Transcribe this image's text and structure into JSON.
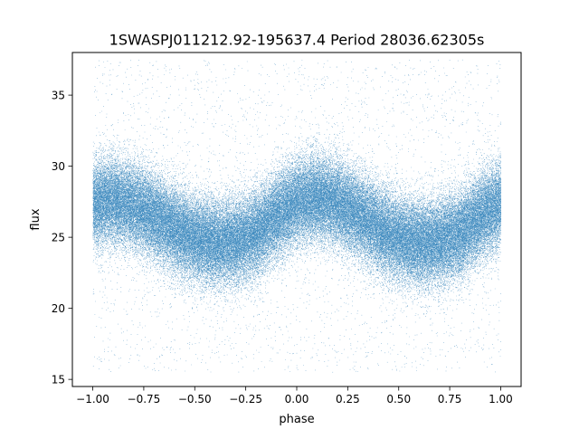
{
  "chart_data": {
    "type": "scatter",
    "title": "1SWASPJ011212.92-195637.4 Period 28036.62305s",
    "xlabel": "phase",
    "ylabel": "flux",
    "xlim": [
      -1.1,
      1.1
    ],
    "ylim": [
      14.5,
      38.0
    ],
    "x_ticks": [
      -1.0,
      -0.75,
      -0.5,
      -0.25,
      0.0,
      0.25,
      0.5,
      0.75,
      1.0
    ],
    "x_tick_labels": [
      "−1.00",
      "−0.75",
      "−0.50",
      "−0.25",
      "0.00",
      "0.25",
      "0.50",
      "0.75",
      "1.00"
    ],
    "y_ticks": [
      15,
      20,
      25,
      30,
      35
    ],
    "y_tick_labels": [
      "15",
      "20",
      "25",
      "30",
      "35"
    ],
    "grid": false,
    "legend": "none",
    "marker_color": "#1f77b4",
    "series_description_points": {
      "x": [
        -1.0,
        -0.9,
        -0.8,
        -0.7,
        -0.6,
        -0.5,
        -0.4,
        -0.3,
        -0.2,
        -0.1,
        0.0,
        0.1,
        0.2,
        0.3,
        0.4,
        0.5,
        0.6,
        0.7,
        0.8,
        0.9,
        1.0
      ],
      "y": [
        27.4,
        27.6,
        27.2,
        26.5,
        25.6,
        24.9,
        24.6,
        24.7,
        25.3,
        26.5,
        27.5,
        27.8,
        27.4,
        26.6,
        25.6,
        24.9,
        24.6,
        24.7,
        25.3,
        26.5,
        27.4
      ]
    },
    "point_count": 110000,
    "scatter_y_spread": 1.5
  }
}
